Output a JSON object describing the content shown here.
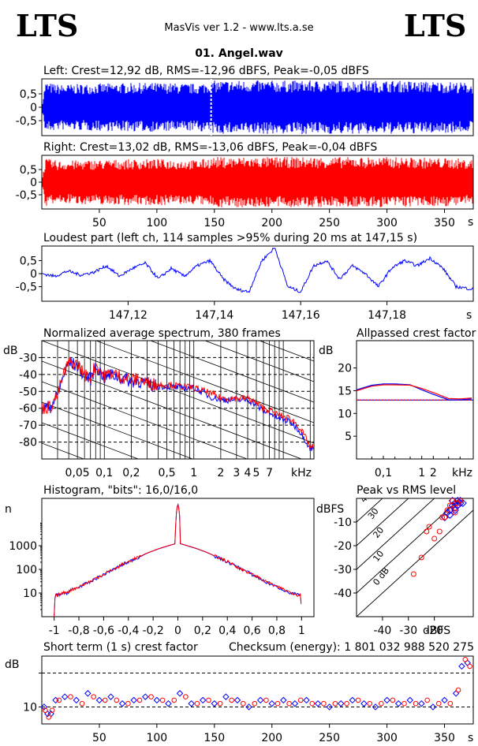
{
  "header": {
    "logo_left": "LTS",
    "logo_right": "LTS",
    "app_title": "MasVis ver 1.2 - www.lts.a.se",
    "file_name": "01. Angel.wav"
  },
  "colors": {
    "left": "#0000ff",
    "right": "#ff0000",
    "grid": "#000000"
  },
  "chart_data": [
    {
      "type": "area",
      "id": "left-waveform",
      "title": "Left: Crest=12,92 dB, RMS=-12,96 dBFS, Peak=-0,05 dBFS",
      "y_ticks": [
        "0,5",
        "0",
        "-0,5"
      ],
      "ylim": [
        -1,
        1
      ],
      "xlim": [
        0,
        375
      ],
      "marker_x": 147.15,
      "envelope": {
        "x": [
          0,
          3,
          8,
          15,
          60,
          100,
          135,
          150,
          250,
          300,
          360,
          375
        ],
        "peak": [
          0.02,
          0.95,
          0.9,
          0.85,
          0.9,
          0.92,
          0.88,
          1.0,
          1.0,
          1.0,
          0.95,
          0.9
        ]
      }
    },
    {
      "type": "area",
      "id": "right-waveform",
      "title": "Right: Crest=13,02 dB, RMS=-13,06 dBFS, Peak=-0,04 dBFS",
      "y_ticks": [
        "0,5",
        "0",
        "-0,5"
      ],
      "ylim": [
        -1,
        1
      ],
      "xlim": [
        0,
        375
      ],
      "x_ticks": [
        "50",
        "100",
        "150",
        "200",
        "250",
        "300",
        "350"
      ],
      "x_unit": "s",
      "envelope": {
        "x": [
          0,
          3,
          8,
          15,
          60,
          100,
          135,
          150,
          250,
          300,
          360,
          375
        ],
        "peak": [
          0.02,
          0.95,
          0.9,
          0.85,
          0.9,
          0.92,
          0.88,
          1.0,
          1.0,
          1.0,
          0.95,
          0.9
        ]
      }
    },
    {
      "type": "line",
      "id": "loudest-part",
      "title": "Loudest part (left  ch, 114 samples >95% during 20 ms at 147,15 s)",
      "y_ticks": [
        "0,5",
        "0",
        "-0,5"
      ],
      "ylim": [
        -1,
        1
      ],
      "xlim": [
        147.1,
        147.2
      ],
      "x_ticks": [
        "147,12",
        "147,14",
        "147,16",
        "147,18"
      ],
      "x_unit": "s",
      "series": [
        {
          "x": [
            147.1,
            147.103,
            147.106,
            147.109,
            147.112,
            147.115,
            147.118,
            147.121,
            147.124,
            147.127,
            147.13,
            147.133,
            147.136,
            147.139,
            147.142,
            147.145,
            147.148,
            147.151,
            147.154,
            147.157,
            147.16,
            147.163,
            147.166,
            147.169,
            147.172,
            147.175,
            147.178,
            147.181,
            147.184,
            147.187,
            147.19,
            147.193,
            147.196,
            147.2
          ],
          "values": [
            0.0,
            -0.1,
            0.1,
            -0.05,
            0.05,
            0.3,
            -0.1,
            0.2,
            0.4,
            -0.2,
            0.2,
            -0.1,
            0.3,
            0.5,
            -0.2,
            -0.6,
            -0.7,
            0.5,
            1.0,
            -0.5,
            -0.7,
            0.3,
            0.5,
            -0.2,
            0.3,
            0.0,
            -0.5,
            0.2,
            0.5,
            0.3,
            0.6,
            0.2,
            -0.5,
            -0.6
          ]
        }
      ]
    },
    {
      "type": "line",
      "id": "spectrum",
      "title": "Normalized average spectrum, 380 frames",
      "ylabel": "dB",
      "y_ticks": [
        "-30",
        "-40",
        "-50",
        "-60",
        "-70",
        "-80"
      ],
      "ylim": [
        -90,
        -20
      ],
      "xscale": "log",
      "xlim": [
        0.02,
        22
      ],
      "x_ticks": [
        "0,05",
        "0,1",
        "0,2",
        "0,5",
        "1",
        "2",
        "3",
        "4",
        "5",
        "7"
      ],
      "x_unit": "kHz",
      "series": [
        {
          "x": [
            0.02,
            0.025,
            0.03,
            0.035,
            0.04,
            0.05,
            0.06,
            0.07,
            0.08,
            0.1,
            0.12,
            0.15,
            0.2,
            0.25,
            0.3,
            0.4,
            0.5,
            0.7,
            1,
            1.5,
            2,
            3,
            4,
            5,
            6,
            7,
            8,
            10,
            12,
            15,
            20
          ],
          "values": [
            -60,
            -59,
            -52,
            -40,
            -33,
            -35,
            -41,
            -43,
            -35,
            -42,
            -40,
            -42,
            -44,
            -44,
            -46,
            -47,
            -47,
            -48,
            -48,
            -53,
            -55,
            -55,
            -55,
            -58,
            -62,
            -62,
            -65,
            -67,
            -68,
            -73,
            -84
          ]
        },
        {
          "x": [
            0.02,
            0.025,
            0.03,
            0.035,
            0.04,
            0.05,
            0.06,
            0.07,
            0.08,
            0.1,
            0.12,
            0.15,
            0.2,
            0.25,
            0.3,
            0.4,
            0.5,
            0.7,
            1,
            1.5,
            2,
            3,
            4,
            5,
            6,
            7,
            8,
            10,
            12,
            15,
            20
          ],
          "values": [
            -60,
            -59,
            -52,
            -40,
            -33,
            -34,
            -40,
            -42,
            -34,
            -41,
            -39,
            -41,
            -43,
            -43,
            -45,
            -46,
            -46,
            -47,
            -48,
            -51,
            -54,
            -54,
            -54,
            -57,
            -60,
            -61,
            -63,
            -65,
            -66,
            -71,
            -83
          ]
        }
      ]
    },
    {
      "type": "line",
      "id": "allpassed-crest",
      "title": "Allpassed crest factor",
      "ylabel": "dB",
      "y_ticks": [
        "20",
        "15",
        "10",
        "5"
      ],
      "ylim": [
        0,
        26
      ],
      "xscale": "log",
      "xlim": [
        0.02,
        22
      ],
      "x_ticks": [
        "0,1",
        "1",
        "2"
      ],
      "x_unit": "kHz",
      "reference_level": 12.95,
      "series": [
        {
          "x": [
            0.02,
            0.05,
            0.1,
            0.2,
            0.5,
            1,
            2,
            5,
            10,
            20
          ],
          "values": [
            15.2,
            16.2,
            16.5,
            16.5,
            16.3,
            15.2,
            14.2,
            13.0,
            13.0,
            13.2
          ]
        },
        {
          "x": [
            0.02,
            0.05,
            0.1,
            0.2,
            0.5,
            1,
            2,
            5,
            10,
            20
          ],
          "values": [
            15.0,
            16.0,
            16.3,
            16.3,
            16.2,
            15.5,
            14.6,
            13.3,
            13.2,
            13.4
          ]
        }
      ]
    },
    {
      "type": "line",
      "id": "histogram",
      "title": "Histogram, \"bits\": 16,0/16,0",
      "ylabel": "n",
      "yscale": "log",
      "y_ticks": [
        "1000",
        "100",
        "10"
      ],
      "ylim": [
        1,
        100000
      ],
      "xlim": [
        -1.1,
        1.1
      ],
      "x_ticks": [
        "-1",
        "-0,8",
        "-0,6",
        "-0,4",
        "-0,2",
        "0",
        "0,2",
        "0,4",
        "0,6",
        "0,8",
        "1"
      ],
      "series": [
        {
          "x": [
            -1.0,
            -0.99,
            -0.95,
            -0.9,
            -0.8,
            -0.7,
            -0.6,
            -0.5,
            -0.4,
            -0.3,
            -0.2,
            -0.1,
            -0.02,
            0.0,
            0.02,
            0.1,
            0.2,
            0.3,
            0.4,
            0.5,
            0.6,
            0.7,
            0.8,
            0.9,
            0.95,
            0.99,
            1.0
          ],
          "values": [
            1,
            8,
            9,
            10,
            18,
            30,
            60,
            110,
            200,
            350,
            600,
            900,
            1200,
            60000,
            1200,
            900,
            600,
            350,
            200,
            110,
            60,
            30,
            18,
            10,
            9,
            8,
            1
          ]
        },
        {
          "x": [
            -1.0,
            -0.99,
            -0.95,
            -0.9,
            -0.8,
            -0.7,
            -0.6,
            -0.5,
            -0.4,
            -0.3,
            -0.2,
            -0.1,
            -0.02,
            0.0,
            0.02,
            0.1,
            0.2,
            0.3,
            0.4,
            0.5,
            0.6,
            0.7,
            0.8,
            0.9,
            0.95,
            0.99,
            1.0
          ],
          "values": [
            1,
            8,
            9,
            11,
            18,
            32,
            60,
            110,
            210,
            360,
            610,
            920,
            1220,
            58000,
            1220,
            920,
            610,
            360,
            210,
            110,
            60,
            32,
            18,
            11,
            9,
            8,
            1
          ]
        }
      ]
    },
    {
      "type": "scatter",
      "id": "peak-vs-rms",
      "title": "Peak vs RMS level",
      "ylabel": "dBFS",
      "xlabel": "dBFS",
      "y_ticks": [
        "-10",
        "-20",
        "-30",
        "-40"
      ],
      "x_ticks": [
        "-40",
        "-30",
        "-20"
      ],
      "xlim": [
        -50,
        -5
      ],
      "ylim": [
        -50,
        0
      ],
      "crest_line_labels": [
        "40",
        "30",
        "20",
        "10",
        "0 dB"
      ],
      "series": [
        {
          "x": [
            -14,
            -13,
            -12,
            -11,
            -15,
            -16,
            -12,
            -10,
            -13,
            -12,
            -11,
            -14,
            -10,
            -9
          ],
          "values": [
            -5,
            -3,
            -2,
            -1,
            -6,
            -8,
            -4,
            -2,
            -1,
            -5,
            -3,
            -7,
            -1,
            -2
          ]
        },
        {
          "x": [
            -25,
            -20,
            -18,
            -16,
            -15,
            -14,
            -13,
            -12,
            -11,
            -12,
            -10,
            -28,
            -23,
            -22,
            -17
          ],
          "values": [
            -25,
            -17,
            -14,
            -8,
            -5,
            -3,
            -1,
            -4,
            -2,
            -6,
            -1,
            -32,
            -14,
            -12,
            -8
          ]
        }
      ]
    },
    {
      "type": "scatter",
      "id": "short-term-crest",
      "title": "Short term (1 s) crest factor",
      "checksum": "Checksum (energy):  1 801 032 988 520 275",
      "ylabel": "dB",
      "y_ticks": [
        "10"
      ],
      "ylim": [
        5,
        25
      ],
      "xlim": [
        0,
        375
      ],
      "x_ticks": [
        "50",
        "100",
        "150",
        "200",
        "250",
        "300",
        "350"
      ],
      "x_unit": "s",
      "series": [
        {
          "x": [
            2,
            5,
            8,
            12,
            20,
            30,
            40,
            50,
            60,
            70,
            80,
            90,
            100,
            110,
            120,
            130,
            140,
            150,
            160,
            170,
            180,
            190,
            200,
            210,
            220,
            230,
            240,
            250,
            260,
            270,
            280,
            290,
            300,
            310,
            320,
            330,
            340,
            350,
            360,
            365,
            370
          ],
          "values": [
            10,
            8,
            8,
            12,
            13,
            12,
            14,
            12,
            13,
            11,
            12,
            13,
            12,
            11,
            14,
            11,
            12,
            11,
            13,
            12,
            10,
            12,
            11,
            12,
            11,
            12,
            11,
            10,
            11,
            12,
            11,
            10,
            12,
            11,
            12,
            11,
            10,
            12,
            14,
            22,
            23
          ]
        },
        {
          "x": [
            3,
            6,
            9,
            15,
            25,
            35,
            45,
            55,
            65,
            75,
            85,
            95,
            105,
            115,
            125,
            135,
            145,
            155,
            165,
            175,
            185,
            195,
            205,
            215,
            225,
            235,
            245,
            255,
            265,
            275,
            285,
            295,
            305,
            315,
            325,
            335,
            345,
            355,
            362,
            368,
            372
          ],
          "values": [
            9,
            7,
            9,
            12,
            13,
            11,
            13,
            12,
            12,
            11,
            12,
            13,
            12,
            12,
            13,
            11,
            12,
            11,
            12,
            11,
            11,
            12,
            11,
            11,
            12,
            11,
            11,
            11,
            11,
            12,
            11,
            11,
            12,
            11,
            11,
            12,
            11,
            11,
            15,
            24,
            22
          ]
        }
      ]
    }
  ]
}
